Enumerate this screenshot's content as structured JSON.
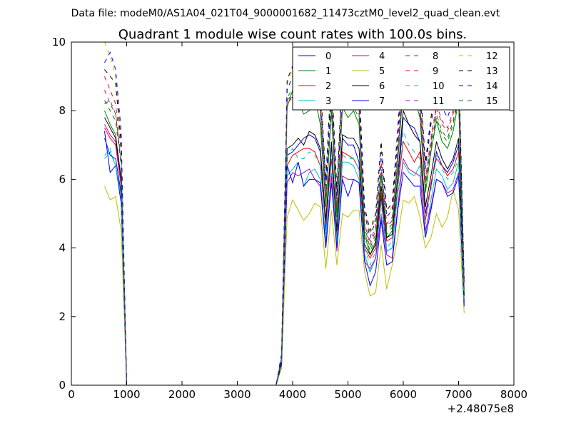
{
  "figure": {
    "suptitle": "Data file: modeM0/AS1A04_021T04_9000001682_11473cztM0_level2_quad_clean.evt",
    "x_offset_label": "+2.48075e8"
  },
  "chart_data": {
    "type": "line",
    "title": "Quadrant 1 module wise count rates with 100.0s bins.",
    "xlabel": "",
    "ylabel": "",
    "xlim": [
      0,
      8000
    ],
    "ylim": [
      0,
      10
    ],
    "x_offset": 248075000,
    "xticks": [
      0,
      1000,
      2000,
      3000,
      4000,
      5000,
      6000,
      7000,
      8000
    ],
    "yticks": [
      0,
      2,
      4,
      6,
      8,
      10
    ],
    "grid": false,
    "legend_position": "top-right",
    "legend_columns": 4,
    "x": [
      600,
      700,
      800,
      900,
      1000,
      1100,
      3700,
      3800,
      3900,
      4000,
      4100,
      4200,
      4300,
      4400,
      4500,
      4600,
      4700,
      4800,
      4900,
      5000,
      5100,
      5200,
      5300,
      5400,
      5500,
      5600,
      5700,
      5800,
      5900,
      6000,
      6100,
      6200,
      6300,
      6400,
      6500,
      6600,
      6700,
      6800,
      6900,
      7000,
      7100
    ],
    "series": [
      {
        "name": "0",
        "color": "#0000ff",
        "dashed": false,
        "values": [
          7.4,
          6.2,
          6.4,
          5.3,
          0,
          0,
          0,
          0.6,
          6.7,
          6.8,
          7.0,
          7.2,
          7.3,
          7.2,
          6.8,
          4.5,
          7.0,
          4.3,
          7.2,
          7.0,
          7.0,
          6.5,
          3.8,
          3.3,
          3.7,
          5.5,
          3.9,
          4.0,
          5.8,
          7.8,
          7.6,
          7.5,
          7.1,
          5.0,
          5.8,
          6.8,
          6.4,
          6.2,
          6.5,
          7.0,
          2.5
        ]
      },
      {
        "name": "1",
        "color": "#008000",
        "dashed": false,
        "values": [
          8.0,
          7.6,
          7.3,
          6.0,
          0,
          0,
          0,
          0.8,
          8.1,
          8.6,
          8.3,
          7.9,
          8.0,
          8.4,
          7.6,
          5.2,
          8.0,
          4.9,
          8.1,
          7.8,
          8.0,
          7.6,
          4.4,
          3.8,
          4.2,
          6.1,
          4.3,
          4.5,
          6.5,
          8.7,
          8.2,
          8.4,
          7.8,
          5.6,
          6.8,
          7.7,
          7.1,
          6.9,
          7.4,
          8.3,
          2.6
        ]
      },
      {
        "name": "2",
        "color": "#ff0000",
        "dashed": false,
        "values": [
          7.5,
          7.2,
          7.0,
          5.8,
          0,
          0,
          0,
          0.7,
          6.4,
          6.7,
          6.8,
          6.9,
          6.9,
          6.8,
          6.4,
          4.7,
          6.6,
          4.4,
          6.8,
          6.7,
          6.6,
          6.3,
          4.0,
          3.7,
          4.0,
          5.6,
          4.2,
          4.3,
          5.8,
          7.1,
          6.8,
          6.5,
          6.8,
          4.8,
          5.9,
          6.6,
          6.4,
          6.1,
          6.3,
          6.8,
          2.5
        ]
      },
      {
        "name": "3",
        "color": "#00bfbf",
        "dashed": false,
        "values": [
          6.6,
          6.8,
          6.4,
          5.5,
          0,
          0,
          0,
          0.6,
          6.1,
          6.3,
          6.5,
          5.8,
          6.2,
          6.3,
          6.0,
          4.2,
          6.2,
          4.1,
          6.5,
          6.5,
          6.4,
          6.0,
          3.8,
          3.3,
          3.7,
          5.0,
          3.9,
          4.0,
          5.6,
          6.5,
          6.2,
          6.1,
          6.4,
          4.4,
          5.4,
          6.3,
          6.1,
          5.7,
          5.9,
          6.5,
          2.4
        ]
      },
      {
        "name": "4",
        "color": "#bf00bf",
        "dashed": false,
        "values": [
          7.6,
          7.3,
          7.1,
          5.9,
          0,
          0,
          0,
          0.6,
          5.9,
          6.2,
          6.1,
          6.2,
          6.3,
          6.0,
          5.8,
          4.0,
          6.1,
          3.9,
          6.1,
          6.0,
          6.0,
          5.9,
          3.6,
          3.4,
          3.7,
          4.9,
          3.8,
          3.7,
          5.2,
          6.6,
          6.3,
          6.2,
          6.1,
          4.5,
          5.2,
          6.0,
          5.9,
          5.6,
          5.7,
          6.2,
          2.4
        ]
      },
      {
        "name": "5",
        "color": "#bfbf00",
        "dashed": false,
        "values": [
          5.8,
          5.4,
          5.5,
          4.5,
          0,
          0,
          0,
          0.5,
          4.9,
          5.4,
          5.1,
          4.8,
          5.0,
          5.3,
          5.2,
          3.4,
          5.1,
          3.5,
          5.0,
          4.9,
          5.1,
          5.1,
          3.3,
          2.6,
          2.7,
          4.1,
          2.8,
          3.5,
          4.3,
          5.4,
          5.3,
          5.5,
          4.9,
          4.0,
          4.3,
          5.0,
          4.6,
          4.9,
          5.7,
          5.1,
          2.1
        ]
      },
      {
        "name": "6",
        "color": "#000000",
        "dashed": false,
        "values": [
          7.8,
          7.5,
          7.2,
          6.0,
          0,
          0,
          0,
          0.7,
          6.9,
          7.0,
          7.2,
          7.0,
          7.4,
          7.3,
          6.9,
          4.8,
          7.1,
          4.5,
          7.3,
          7.2,
          7.2,
          6.9,
          4.1,
          3.8,
          4.1,
          5.8,
          4.3,
          4.4,
          6.1,
          8.0,
          7.6,
          7.3,
          7.1,
          5.2,
          6.1,
          7.1,
          6.6,
          6.3,
          6.6,
          7.2,
          2.6
        ]
      },
      {
        "name": "7",
        "color": "#0000ff",
        "dashed": false,
        "values": [
          7.2,
          6.7,
          6.6,
          5.6,
          0,
          0,
          0,
          0.6,
          6.4,
          5.9,
          6.5,
          5.8,
          6.0,
          6.0,
          5.9,
          4.0,
          5.9,
          4.0,
          6.0,
          5.5,
          6.0,
          5.9,
          3.6,
          2.9,
          3.3,
          4.8,
          3.5,
          3.6,
          5.1,
          6.2,
          6.0,
          5.8,
          5.8,
          4.3,
          5.1,
          6.0,
          5.9,
          5.5,
          5.6,
          6.1,
          2.3
        ]
      },
      {
        "name": "8",
        "color": "#008000",
        "dashed": true,
        "values": [
          8.3,
          8.0,
          7.7,
          6.4,
          0,
          0,
          0,
          0.8,
          8.4,
          8.6,
          8.5,
          8.2,
          8.3,
          8.4,
          8.0,
          5.4,
          8.3,
          5.1,
          8.3,
          8.1,
          8.2,
          7.9,
          4.6,
          4.0,
          4.4,
          6.3,
          4.5,
          4.7,
          6.7,
          8.9,
          8.5,
          8.6,
          8.0,
          5.8,
          7.0,
          7.9,
          7.4,
          7.2,
          7.7,
          8.5,
          2.7
        ]
      },
      {
        "name": "9",
        "color": "#ff0000",
        "dashed": true,
        "values": [
          9.0,
          8.6,
          8.2,
          6.8,
          0,
          0,
          0,
          0.8,
          8.2,
          8.4,
          8.3,
          8.6,
          8.7,
          8.5,
          8.1,
          5.6,
          8.4,
          5.2,
          8.5,
          8.3,
          8.4,
          8.1,
          4.7,
          4.1,
          4.5,
          6.5,
          4.6,
          4.8,
          6.9,
          9.1,
          8.7,
          8.8,
          8.2,
          5.9,
          7.1,
          8.1,
          7.6,
          7.4,
          7.9,
          8.7,
          2.8
        ]
      },
      {
        "name": "10",
        "color": "#00bfbf",
        "dashed": true,
        "values": [
          6.7,
          6.9,
          6.4,
          5.5,
          0,
          0,
          0,
          0.6,
          6.7,
          6.9,
          6.6,
          6.6,
          6.8,
          6.7,
          6.4,
          4.4,
          6.6,
          4.2,
          6.7,
          6.6,
          6.6,
          6.3,
          4.0,
          3.5,
          3.9,
          5.3,
          4.0,
          4.2,
          5.9,
          7.4,
          7.0,
          6.8,
          6.6,
          4.7,
          5.7,
          6.7,
          6.3,
          6.0,
          6.2,
          6.6,
          2.4
        ]
      },
      {
        "name": "11",
        "color": "#bf00bf",
        "dashed": true,
        "values": [
          8.6,
          8.2,
          7.9,
          6.5,
          0,
          0,
          0,
          0.8,
          8.3,
          8.4,
          8.6,
          8.5,
          8.5,
          8.6,
          8.2,
          5.5,
          8.5,
          5.2,
          8.6,
          8.4,
          8.5,
          8.2,
          4.7,
          4.2,
          4.6,
          6.4,
          4.7,
          4.9,
          6.8,
          9.0,
          8.6,
          8.7,
          8.3,
          6.0,
          7.2,
          8.2,
          7.7,
          7.5,
          8.0,
          8.8,
          2.8
        ]
      },
      {
        "name": "12",
        "color": "#bfbf00",
        "dashed": true,
        "values": [
          10.0,
          9.6,
          9.0,
          7.2,
          0,
          0,
          0,
          0.9,
          8.8,
          9.2,
          9.0,
          8.9,
          9.1,
          9.3,
          8.7,
          5.9,
          9.0,
          5.6,
          9.2,
          9.0,
          9.1,
          8.8,
          5.1,
          4.4,
          4.9,
          7.0,
          5.0,
          5.2,
          7.4,
          9.6,
          9.3,
          9.4,
          8.8,
          6.4,
          7.7,
          8.8,
          8.3,
          8.0,
          8.5,
          9.4,
          3.0
        ]
      },
      {
        "name": "13",
        "color": "#000000",
        "dashed": true,
        "values": [
          9.2,
          9.0,
          8.8,
          7.0,
          0,
          0,
          0,
          0.9,
          8.9,
          9.3,
          9.1,
          9.0,
          9.2,
          9.4,
          8.8,
          6.0,
          9.1,
          5.7,
          9.3,
          9.1,
          9.2,
          8.9,
          5.2,
          4.5,
          5.0,
          7.1,
          5.1,
          5.3,
          7.5,
          9.7,
          9.4,
          9.5,
          8.9,
          6.5,
          7.8,
          8.9,
          8.4,
          8.1,
          8.6,
          9.5,
          3.1
        ]
      },
      {
        "name": "14",
        "color": "#0000ff",
        "dashed": true,
        "values": [
          9.4,
          9.7,
          9.2,
          7.4,
          0,
          0,
          0,
          0.9,
          8.6,
          9.0,
          8.8,
          8.7,
          8.9,
          9.1,
          8.5,
          5.8,
          8.8,
          5.5,
          9.0,
          8.8,
          8.9,
          8.6,
          5.0,
          4.3,
          4.8,
          6.8,
          4.9,
          5.1,
          7.2,
          9.4,
          9.1,
          9.2,
          8.6,
          6.3,
          7.6,
          8.6,
          8.1,
          7.8,
          8.3,
          9.2,
          3.0
        ]
      },
      {
        "name": "15",
        "color": "#008000",
        "dashed": true,
        "values": [
          8.2,
          8.3,
          7.9,
          6.6,
          0,
          0,
          0,
          0.8,
          8.3,
          8.5,
          8.4,
          8.1,
          8.2,
          8.4,
          7.9,
          5.3,
          8.2,
          5.0,
          8.2,
          8.0,
          8.1,
          7.8,
          4.5,
          3.9,
          4.3,
          6.2,
          4.4,
          4.6,
          6.6,
          8.8,
          8.4,
          8.5,
          7.9,
          5.7,
          6.9,
          7.8,
          7.3,
          7.1,
          7.6,
          8.4,
          2.7
        ]
      }
    ]
  }
}
